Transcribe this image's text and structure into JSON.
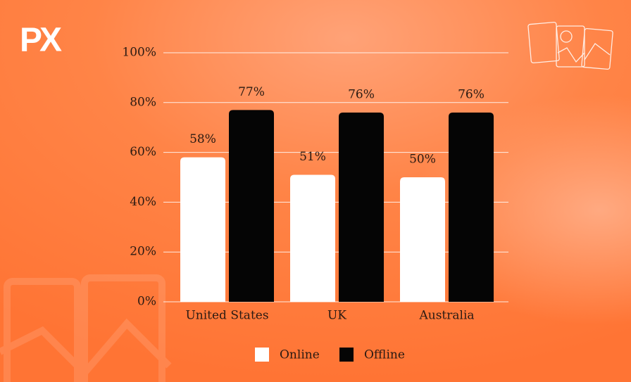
{
  "logo": "PX",
  "chart_data": {
    "type": "bar",
    "categories": [
      "United States",
      "UK",
      "Australia"
    ],
    "series": [
      {
        "name": "Online",
        "color": "#ffffff",
        "values": [
          58,
          51,
          50
        ],
        "value_labels": [
          "58%",
          "51%",
          "50%"
        ]
      },
      {
        "name": "Offline",
        "color": "#050505",
        "values": [
          77,
          76,
          76
        ],
        "value_labels": [
          "77%",
          "76%",
          "76%"
        ]
      }
    ],
    "ylim": [
      0,
      100
    ],
    "yticks": [
      {
        "value": 0,
        "label": "0%"
      },
      {
        "value": 20,
        "label": "20%"
      },
      {
        "value": 40,
        "label": "40%"
      },
      {
        "value": 60,
        "label": "60%"
      },
      {
        "value": 80,
        "label": "80%"
      },
      {
        "value": 100,
        "label": "100%"
      }
    ],
    "grid": true
  }
}
